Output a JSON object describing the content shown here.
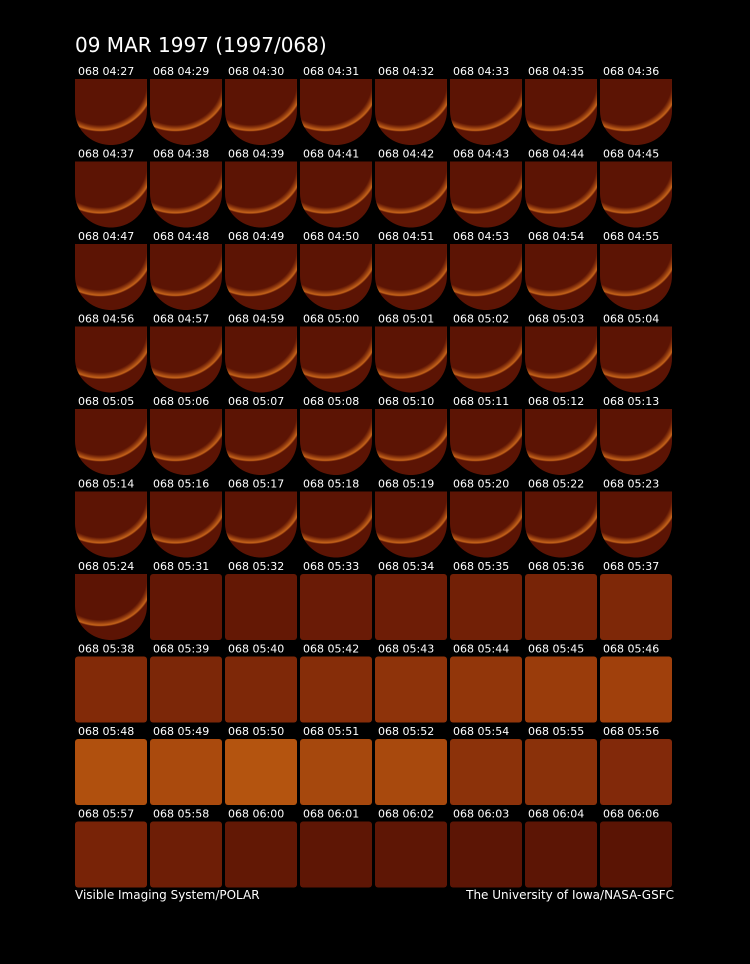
{
  "title": "09 MAR 1997  (1997/068)",
  "frames": [
    {
      "label": "068 04:27",
      "shape": "disk",
      "color": "#5c1404"
    },
    {
      "label": "068 04:29",
      "shape": "disk",
      "color": "#5c1404"
    },
    {
      "label": "068 04:30",
      "shape": "disk",
      "color": "#5c1404"
    },
    {
      "label": "068 04:31",
      "shape": "disk",
      "color": "#5c1404"
    },
    {
      "label": "068 04:32",
      "shape": "disk",
      "color": "#5c1404"
    },
    {
      "label": "068 04:33",
      "shape": "disk",
      "color": "#5c1404"
    },
    {
      "label": "068 04:35",
      "shape": "disk",
      "color": "#5c1404"
    },
    {
      "label": "068 04:36",
      "shape": "disk",
      "color": "#5c1404"
    },
    {
      "label": "068 04:37",
      "shape": "disk",
      "color": "#5c1404"
    },
    {
      "label": "068 04:38",
      "shape": "disk",
      "color": "#5c1404"
    },
    {
      "label": "068 04:39",
      "shape": "disk",
      "color": "#5c1404"
    },
    {
      "label": "068 04:41",
      "shape": "disk",
      "color": "#5c1404"
    },
    {
      "label": "068 04:42",
      "shape": "disk",
      "color": "#5c1404"
    },
    {
      "label": "068 04:43",
      "shape": "disk",
      "color": "#5c1404"
    },
    {
      "label": "068 04:44",
      "shape": "disk",
      "color": "#5c1404"
    },
    {
      "label": "068 04:45",
      "shape": "disk",
      "color": "#5c1404"
    },
    {
      "label": "068 04:47",
      "shape": "disk",
      "color": "#5c1404"
    },
    {
      "label": "068 04:48",
      "shape": "disk",
      "color": "#5c1404"
    },
    {
      "label": "068 04:49",
      "shape": "disk",
      "color": "#5c1404"
    },
    {
      "label": "068 04:50",
      "shape": "disk",
      "color": "#5c1404"
    },
    {
      "label": "068 04:51",
      "shape": "disk",
      "color": "#5c1404"
    },
    {
      "label": "068 04:53",
      "shape": "disk",
      "color": "#5c1404"
    },
    {
      "label": "068 04:54",
      "shape": "disk",
      "color": "#5c1404"
    },
    {
      "label": "068 04:55",
      "shape": "disk",
      "color": "#5c1404"
    },
    {
      "label": "068 04:56",
      "shape": "disk",
      "color": "#5c1404"
    },
    {
      "label": "068 04:57",
      "shape": "disk",
      "color": "#5c1404"
    },
    {
      "label": "068 04:59",
      "shape": "disk",
      "color": "#5c1404"
    },
    {
      "label": "068 05:00",
      "shape": "disk",
      "color": "#5c1404"
    },
    {
      "label": "068 05:01",
      "shape": "disk",
      "color": "#5c1404"
    },
    {
      "label": "068 05:02",
      "shape": "disk",
      "color": "#5c1404"
    },
    {
      "label": "068 05:03",
      "shape": "disk",
      "color": "#5c1404"
    },
    {
      "label": "068 05:04",
      "shape": "disk",
      "color": "#5c1404"
    },
    {
      "label": "068 05:05",
      "shape": "disk",
      "color": "#5c1404"
    },
    {
      "label": "068 05:06",
      "shape": "disk",
      "color": "#5c1404"
    },
    {
      "label": "068 05:07",
      "shape": "disk",
      "color": "#5c1404"
    },
    {
      "label": "068 05:08",
      "shape": "disk",
      "color": "#5c1404"
    },
    {
      "label": "068 05:10",
      "shape": "disk",
      "color": "#5c1404"
    },
    {
      "label": "068 05:11",
      "shape": "disk",
      "color": "#5c1404"
    },
    {
      "label": "068 05:12",
      "shape": "disk",
      "color": "#5c1404"
    },
    {
      "label": "068 05:13",
      "shape": "disk",
      "color": "#5c1404"
    },
    {
      "label": "068 05:14",
      "shape": "disk",
      "color": "#5c1404"
    },
    {
      "label": "068 05:16",
      "shape": "disk",
      "color": "#5c1404"
    },
    {
      "label": "068 05:17",
      "shape": "disk",
      "color": "#5c1404"
    },
    {
      "label": "068 05:18",
      "shape": "disk",
      "color": "#5c1404"
    },
    {
      "label": "068 05:19",
      "shape": "disk",
      "color": "#5c1404"
    },
    {
      "label": "068 05:20",
      "shape": "disk",
      "color": "#5c1404"
    },
    {
      "label": "068 05:22",
      "shape": "disk",
      "color": "#5c1404"
    },
    {
      "label": "068 05:23",
      "shape": "disk",
      "color": "#5c1404"
    },
    {
      "label": "068 05:24",
      "shape": "disk",
      "color": "#5c1404"
    },
    {
      "label": "068 05:31",
      "shape": "field",
      "color": "#621705"
    },
    {
      "label": "068 05:32",
      "shape": "field",
      "color": "#641805"
    },
    {
      "label": "068 05:33",
      "shape": "field",
      "color": "#6a1b06"
    },
    {
      "label": "068 05:34",
      "shape": "field",
      "color": "#6e1d06"
    },
    {
      "label": "068 05:35",
      "shape": "field",
      "color": "#722006"
    },
    {
      "label": "068 05:36",
      "shape": "field",
      "color": "#782407"
    },
    {
      "label": "068 05:37",
      "shape": "field",
      "color": "#7e2808"
    },
    {
      "label": "068 05:38",
      "shape": "field",
      "color": "#822a08"
    },
    {
      "label": "068 05:39",
      "shape": "field",
      "color": "#7c2708"
    },
    {
      "label": "068 05:40",
      "shape": "field",
      "color": "#7e2808"
    },
    {
      "label": "068 05:42",
      "shape": "field",
      "color": "#862d09"
    },
    {
      "label": "068 05:43",
      "shape": "field",
      "color": "#8e330a"
    },
    {
      "label": "068 05:44",
      "shape": "field",
      "color": "#92360a"
    },
    {
      "label": "068 05:45",
      "shape": "field",
      "color": "#9a3c0b"
    },
    {
      "label": "068 05:46",
      "shape": "field",
      "color": "#a0400c"
    },
    {
      "label": "068 05:48",
      "shape": "field",
      "color": "#b0500e"
    },
    {
      "label": "068 05:49",
      "shape": "field",
      "color": "#aa4a0d"
    },
    {
      "label": "068 05:50",
      "shape": "field",
      "color": "#b4540f"
    },
    {
      "label": "068 05:51",
      "shape": "field",
      "color": "#a6480d"
    },
    {
      "label": "068 05:52",
      "shape": "field",
      "color": "#a8490d"
    },
    {
      "label": "068 05:54",
      "shape": "field",
      "color": "#8c320a"
    },
    {
      "label": "068 05:55",
      "shape": "field",
      "color": "#8a310a"
    },
    {
      "label": "068 05:56",
      "shape": "field",
      "color": "#82290a"
    },
    {
      "label": "068 05:57",
      "shape": "field",
      "color": "#782307"
    },
    {
      "label": "068 05:58",
      "shape": "field",
      "color": "#6e1e06"
    },
    {
      "label": "068 06:00",
      "shape": "field",
      "color": "#621805"
    },
    {
      "label": "068 06:01",
      "shape": "field",
      "color": "#5e1605"
    },
    {
      "label": "068 06:02",
      "shape": "field",
      "color": "#5e1605"
    },
    {
      "label": "068 06:03",
      "shape": "field",
      "color": "#5c1505"
    },
    {
      "label": "068 06:04",
      "shape": "field",
      "color": "#5c1505"
    },
    {
      "label": "068 06:06",
      "shape": "field",
      "color": "#5a1404"
    }
  ],
  "footer": {
    "left": "Visible Imaging System/POLAR",
    "right": "The University of Iowa/NASA-GSFC"
  }
}
